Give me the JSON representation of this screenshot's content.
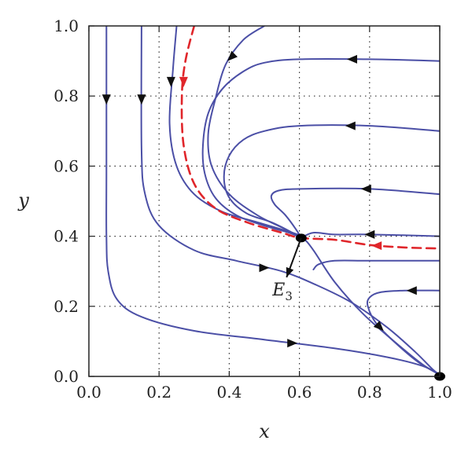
{
  "chart_data": {
    "type": "line",
    "title": "",
    "xlabel": "x",
    "ylabel": "y",
    "xlim": [
      0,
      1
    ],
    "ylim": [
      0,
      1
    ],
    "xticks": [
      "0.0",
      "0.2",
      "0.4",
      "0.6",
      "0.8",
      "1.0"
    ],
    "yticks": [
      "0.0",
      "0.2",
      "0.4",
      "0.6",
      "0.8",
      "1.0"
    ],
    "grid": true,
    "colors": {
      "trajectory": "#4b4fa6",
      "separatrix": "#e0262b",
      "point": "#000000"
    },
    "annotations": [
      {
        "id": "E3",
        "text": "E",
        "subscript": "3",
        "point": [
          0.605,
          0.395
        ],
        "label_at": [
          0.55,
          0.22
        ]
      }
    ],
    "equilibria": [
      {
        "name": "E3",
        "x": 0.605,
        "y": 0.395
      },
      {
        "name": "corner",
        "x": 1.0,
        "y": 0.0
      }
    ],
    "series": [
      {
        "style": "solid",
        "points": [
          [
            0.05,
            1.0
          ],
          [
            0.05,
            0.6
          ],
          [
            0.05,
            0.4
          ],
          [
            0.055,
            0.3
          ],
          [
            0.08,
            0.22
          ],
          [
            0.15,
            0.17
          ],
          [
            0.3,
            0.13
          ],
          [
            0.5,
            0.105
          ],
          [
            0.7,
            0.08
          ],
          [
            0.85,
            0.055
          ],
          [
            0.95,
            0.03
          ],
          [
            1.0,
            0.005
          ]
        ],
        "arrows": [
          [
            0.05,
            0.79,
            "down"
          ],
          [
            0.58,
            0.095,
            "right"
          ]
        ]
      },
      {
        "style": "solid",
        "points": [
          [
            0.15,
            1.0
          ],
          [
            0.15,
            0.65
          ],
          [
            0.16,
            0.52
          ],
          [
            0.2,
            0.43
          ],
          [
            0.3,
            0.36
          ],
          [
            0.42,
            0.33
          ],
          [
            0.55,
            0.3
          ],
          [
            0.65,
            0.26
          ],
          [
            0.75,
            0.21
          ],
          [
            0.85,
            0.14
          ],
          [
            0.93,
            0.07
          ],
          [
            0.98,
            0.02
          ],
          [
            1.0,
            0.005
          ]
        ],
        "arrows": [
          [
            0.15,
            0.79,
            "down"
          ],
          [
            0.5,
            0.31,
            "right"
          ]
        ]
      },
      {
        "style": "solid",
        "points": [
          [
            0.25,
            1.0
          ],
          [
            0.24,
            0.88
          ],
          [
            0.23,
            0.72
          ],
          [
            0.25,
            0.6
          ],
          [
            0.3,
            0.52
          ],
          [
            0.38,
            0.47
          ],
          [
            0.48,
            0.44
          ],
          [
            0.58,
            0.41
          ],
          [
            0.61,
            0.395
          ],
          [
            0.64,
            0.36
          ],
          [
            0.7,
            0.27
          ],
          [
            0.78,
            0.18
          ],
          [
            0.87,
            0.1
          ],
          [
            0.95,
            0.035
          ],
          [
            1.0,
            0.005
          ]
        ],
        "arrows": [
          [
            0.234,
            0.84,
            "down"
          ],
          [
            0.83,
            0.14,
            "down-right"
          ]
        ]
      },
      {
        "style": "dashed",
        "points": [
          [
            0.3,
            1.0
          ],
          [
            0.275,
            0.9
          ],
          [
            0.265,
            0.8
          ],
          [
            0.27,
            0.66
          ],
          [
            0.3,
            0.55
          ],
          [
            0.36,
            0.48
          ],
          [
            0.45,
            0.44
          ],
          [
            0.55,
            0.41
          ],
          [
            0.605,
            0.395
          ],
          [
            0.7,
            0.39
          ],
          [
            0.8,
            0.375
          ],
          [
            0.9,
            0.368
          ],
          [
            1.0,
            0.365
          ]
        ],
        "arrows": [
          [
            0.27,
            0.84,
            "down"
          ],
          [
            0.82,
            0.373,
            "left"
          ]
        ]
      },
      {
        "style": "solid",
        "points": [
          [
            0.5,
            1.0
          ],
          [
            0.44,
            0.96
          ],
          [
            0.39,
            0.89
          ],
          [
            0.36,
            0.79
          ],
          [
            0.34,
            0.69
          ],
          [
            0.35,
            0.6
          ],
          [
            0.4,
            0.52
          ],
          [
            0.48,
            0.46
          ],
          [
            0.56,
            0.42
          ],
          [
            0.605,
            0.395
          ]
        ],
        "arrows": [
          [
            0.405,
            0.91,
            "down-left"
          ]
        ]
      },
      {
        "style": "solid",
        "points": [
          [
            1.0,
            0.9
          ],
          [
            0.8,
            0.905
          ],
          [
            0.6,
            0.905
          ],
          [
            0.5,
            0.895
          ],
          [
            0.44,
            0.87
          ],
          [
            0.38,
            0.82
          ],
          [
            0.34,
            0.75
          ],
          [
            0.325,
            0.66
          ],
          [
            0.33,
            0.58
          ],
          [
            0.36,
            0.51
          ],
          [
            0.42,
            0.46
          ],
          [
            0.5,
            0.43
          ],
          [
            0.57,
            0.41
          ],
          [
            0.605,
            0.395
          ]
        ],
        "arrows": [
          [
            0.75,
            0.905,
            "left"
          ]
        ]
      },
      {
        "style": "solid",
        "points": [
          [
            1.0,
            0.7
          ],
          [
            0.8,
            0.715
          ],
          [
            0.6,
            0.715
          ],
          [
            0.5,
            0.7
          ],
          [
            0.44,
            0.675
          ],
          [
            0.4,
            0.63
          ],
          [
            0.385,
            0.57
          ],
          [
            0.4,
            0.51
          ],
          [
            0.45,
            0.465
          ],
          [
            0.52,
            0.44
          ],
          [
            0.58,
            0.41
          ],
          [
            0.605,
            0.395
          ]
        ],
        "arrows": [
          [
            0.745,
            0.715,
            "left"
          ]
        ]
      },
      {
        "style": "solid",
        "points": [
          [
            1.0,
            0.52
          ],
          [
            0.8,
            0.535
          ],
          [
            0.6,
            0.535
          ],
          [
            0.54,
            0.53
          ],
          [
            0.52,
            0.515
          ],
          [
            0.53,
            0.49
          ],
          [
            0.56,
            0.46
          ],
          [
            0.59,
            0.42
          ],
          [
            0.605,
            0.395
          ]
        ],
        "arrows": [
          [
            0.79,
            0.535,
            "left"
          ]
        ]
      },
      {
        "style": "solid",
        "points": [
          [
            1.0,
            0.4
          ],
          [
            0.8,
            0.405
          ],
          [
            0.7,
            0.405
          ],
          [
            0.64,
            0.41
          ],
          [
            0.605,
            0.395
          ]
        ],
        "arrows": [
          [
            0.8,
            0.405,
            "left"
          ]
        ]
      },
      {
        "style": "solid",
        "points": [
          [
            1.0,
            0.33
          ],
          [
            0.8,
            0.33
          ],
          [
            0.7,
            0.33
          ],
          [
            0.655,
            0.32
          ],
          [
            0.64,
            0.305
          ]
        ],
        "arrows": []
      },
      {
        "style": "solid",
        "points": [
          [
            1.0,
            0.245
          ],
          [
            0.9,
            0.245
          ],
          [
            0.83,
            0.24
          ],
          [
            0.8,
            0.225
          ],
          [
            0.795,
            0.2
          ],
          [
            0.82,
            0.15
          ],
          [
            0.88,
            0.09
          ],
          [
            0.94,
            0.04
          ],
          [
            1.0,
            0.005
          ]
        ],
        "arrows": [
          [
            0.92,
            0.245,
            "left"
          ]
        ]
      }
    ]
  }
}
